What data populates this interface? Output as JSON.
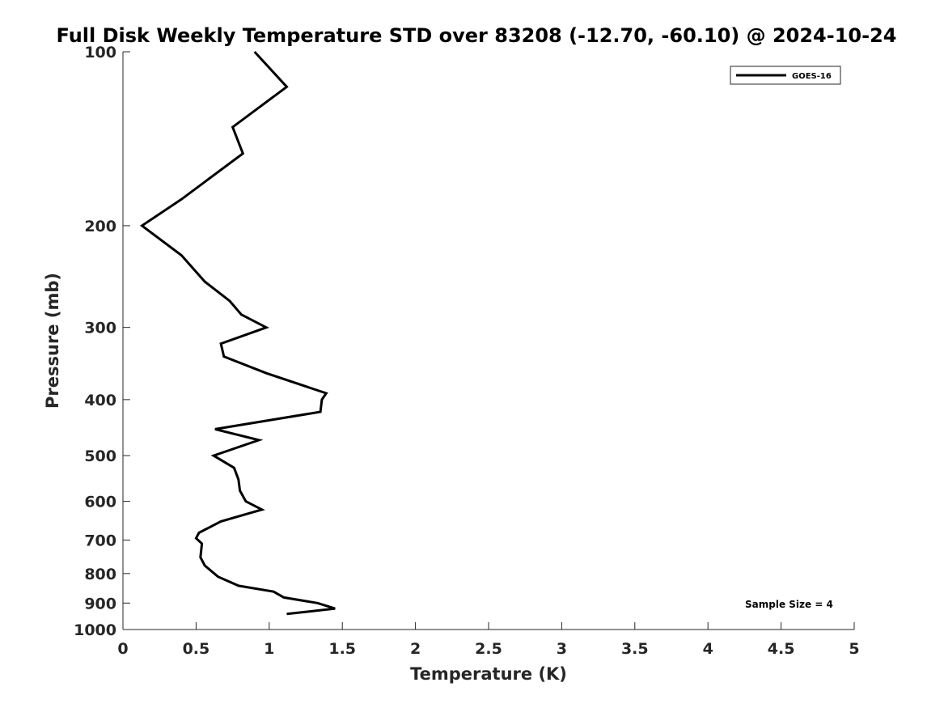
{
  "chart_data": {
    "type": "line",
    "title": "Full Disk Weekly Temperature STD over 83208 (-12.70, -60.10) @ 2024-10-24",
    "xlabel": "Temperature (K)",
    "ylabel": "Pressure (mb)",
    "xlim": [
      0,
      5
    ],
    "ylim": [
      100,
      1000
    ],
    "y_scale": "log",
    "y_reversed": true,
    "x_ticks": [
      "0",
      "0.5",
      "1",
      "1.5",
      "2",
      "2.5",
      "3",
      "3.5",
      "4",
      "4.5",
      "5"
    ],
    "y_ticks": [
      "100",
      "200",
      "300",
      "400",
      "500",
      "600",
      "700",
      "800",
      "900",
      "1000"
    ],
    "grid": false,
    "legend_position": "top-right",
    "annotation": "Sample Size = 4",
    "series": [
      {
        "name": "GOES-16",
        "color": "#000000",
        "points": [
          {
            "x": 0.9,
            "p": 100
          },
          {
            "x": 1.12,
            "p": 115
          },
          {
            "x": 0.75,
            "p": 135
          },
          {
            "x": 0.82,
            "p": 150
          },
          {
            "x": 0.4,
            "p": 180
          },
          {
            "x": 0.13,
            "p": 200
          },
          {
            "x": 0.4,
            "p": 225
          },
          {
            "x": 0.56,
            "p": 250
          },
          {
            "x": 0.73,
            "p": 270
          },
          {
            "x": 0.81,
            "p": 285
          },
          {
            "x": 0.98,
            "p": 300
          },
          {
            "x": 0.67,
            "p": 320
          },
          {
            "x": 0.69,
            "p": 337
          },
          {
            "x": 0.98,
            "p": 360
          },
          {
            "x": 1.39,
            "p": 390
          },
          {
            "x": 1.36,
            "p": 400
          },
          {
            "x": 1.35,
            "p": 420
          },
          {
            "x": 0.63,
            "p": 450
          },
          {
            "x": 0.93,
            "p": 470
          },
          {
            "x": 0.62,
            "p": 500
          },
          {
            "x": 0.76,
            "p": 525
          },
          {
            "x": 0.79,
            "p": 550
          },
          {
            "x": 0.8,
            "p": 575
          },
          {
            "x": 0.84,
            "p": 600
          },
          {
            "x": 0.95,
            "p": 620
          },
          {
            "x": 0.67,
            "p": 650
          },
          {
            "x": 0.52,
            "p": 680
          },
          {
            "x": 0.5,
            "p": 695
          },
          {
            "x": 0.54,
            "p": 710
          },
          {
            "x": 0.53,
            "p": 750
          },
          {
            "x": 0.56,
            "p": 775
          },
          {
            "x": 0.65,
            "p": 810
          },
          {
            "x": 0.79,
            "p": 840
          },
          {
            "x": 1.03,
            "p": 860
          },
          {
            "x": 1.1,
            "p": 880
          },
          {
            "x": 1.33,
            "p": 900
          },
          {
            "x": 1.45,
            "p": 920
          },
          {
            "x": 1.12,
            "p": 940
          }
        ]
      }
    ]
  }
}
